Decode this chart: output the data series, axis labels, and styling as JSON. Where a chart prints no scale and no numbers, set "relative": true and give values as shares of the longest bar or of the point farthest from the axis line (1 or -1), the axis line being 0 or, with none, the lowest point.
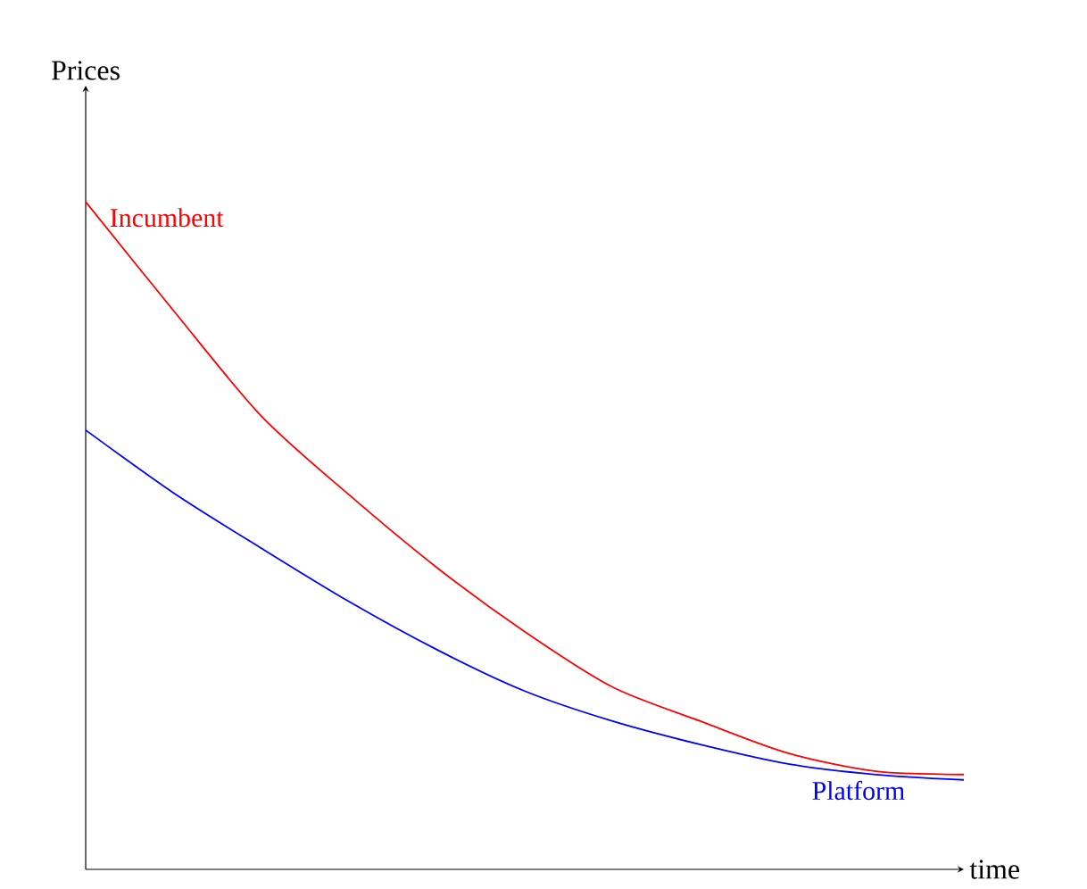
{
  "chart_data": {
    "type": "line",
    "relative": true,
    "xlabel": "time",
    "ylabel": "Prices",
    "categories": [
      null,
      null,
      null,
      null,
      null,
      null,
      null,
      null,
      null,
      null,
      null
    ],
    "marker": "none",
    "line_style": "solid",
    "series": [
      {
        "name": "Incumbent",
        "color": "#ff0000",
        "values": [
          1,
          0.837,
          0.679,
          0.561,
          0.452,
          0.356,
          0.273,
          0.222,
          0.174,
          0.147,
          0.142
        ]
      },
      {
        "name": "Platform",
        "color": "#0000ff",
        "values": [
          0.658,
          0.564,
          0.481,
          0.401,
          0.329,
          0.267,
          0.222,
          0.187,
          0.158,
          0.142,
          0.134
        ]
      }
    ]
  }
}
